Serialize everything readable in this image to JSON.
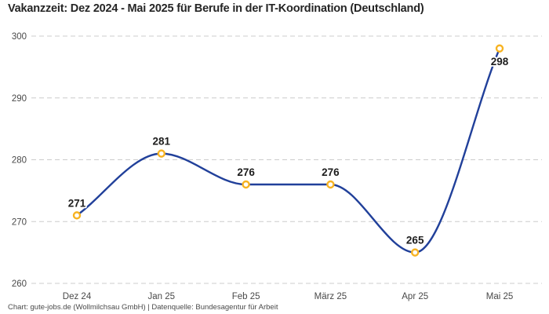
{
  "header": {
    "title": "Vakanzzeit: Dez 2024 - Mai 2025 für Berufe in der IT-Koordination (Deutschland)"
  },
  "footer": {
    "attribution": "Chart: gute-jobs.de (Wollmilchsau GmbH) | Datenquelle: Bundesagentur für Arbeit"
  },
  "colors": {
    "background": "#ffffff",
    "line": "#21409a",
    "marker_stroke": "#f7b322",
    "marker_fill": "#ffffff",
    "grid": "#cccccc",
    "axis_text": "#494949",
    "value_label": "#1d1d1d",
    "value_label_halo": "#ffffff",
    "title_text": "#252525",
    "footer_text": "#4a4a4a"
  },
  "chart_data": {
    "type": "line",
    "title": "Vakanzzeit: Dez 2024 - Mai 2025 für Berufe in der IT-Koordination (Deutschland)",
    "categories": [
      "Dez 24",
      "Jan 25",
      "Feb 25",
      "März 25",
      "Apr 25",
      "Mai 25"
    ],
    "values": [
      271,
      281,
      276,
      276,
      265,
      298
    ],
    "point_labels": [
      "271",
      "281",
      "276",
      "276",
      "265",
      "298"
    ],
    "y_ticks": [
      300,
      290,
      280,
      270,
      260
    ],
    "ylim": [
      260,
      300
    ],
    "xlabel": "",
    "ylabel": "",
    "legend": "none",
    "grid": "horizontal-dashed",
    "interpolation": "monotone"
  }
}
